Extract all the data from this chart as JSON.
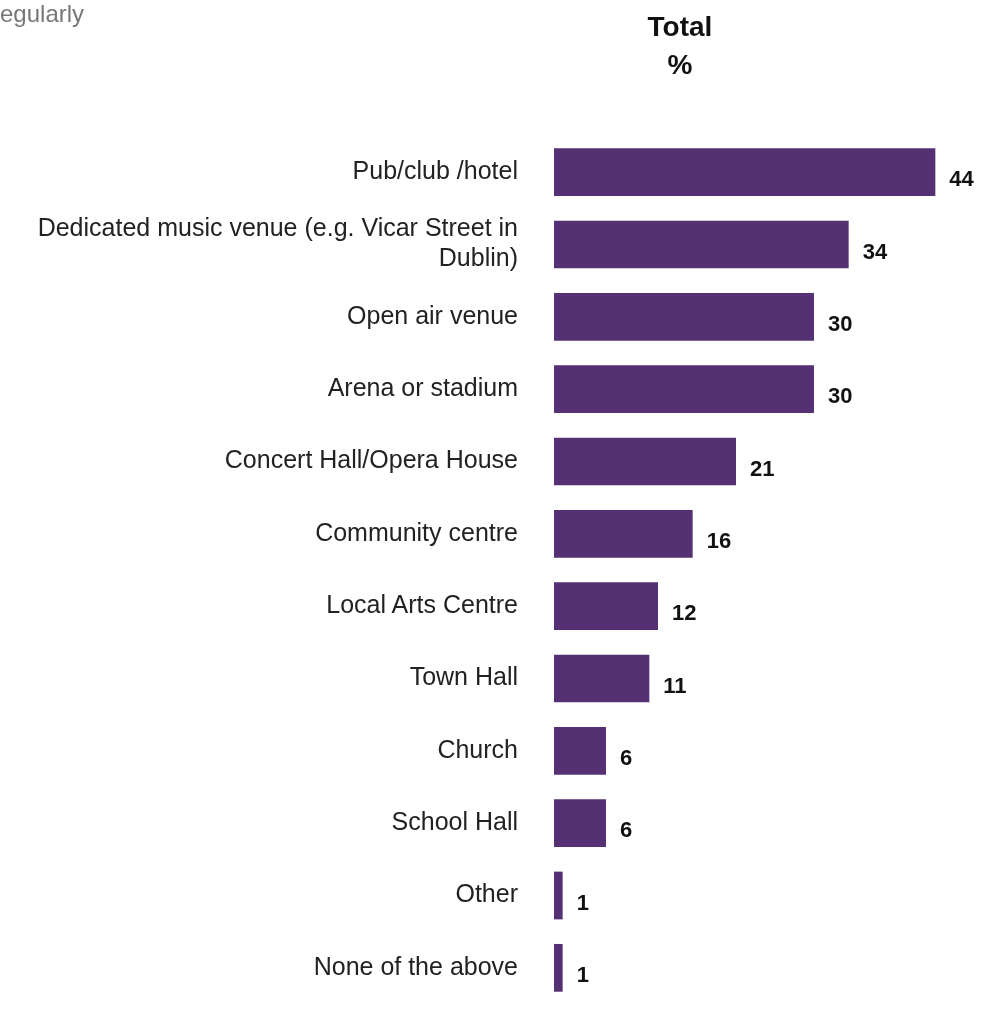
{
  "chart_data": {
    "type": "bar",
    "orientation": "horizontal",
    "title": "Total %",
    "annotations": [
      "egularly"
    ],
    "categories": [
      "Pub/club /hotel",
      "Dedicated music venue (e.g. Vicar Street in Dublin)",
      "Open air venue",
      "Arena or stadium",
      "Concert Hall/Opera House",
      "Community centre",
      "Local Arts Centre",
      "Town Hall",
      "Church",
      "School Hall",
      "Other",
      "None of the above"
    ],
    "values": [
      44,
      34,
      30,
      30,
      21,
      16,
      12,
      11,
      6,
      6,
      1,
      1
    ],
    "color": "#553073",
    "data_labels": true,
    "legend": false
  }
}
